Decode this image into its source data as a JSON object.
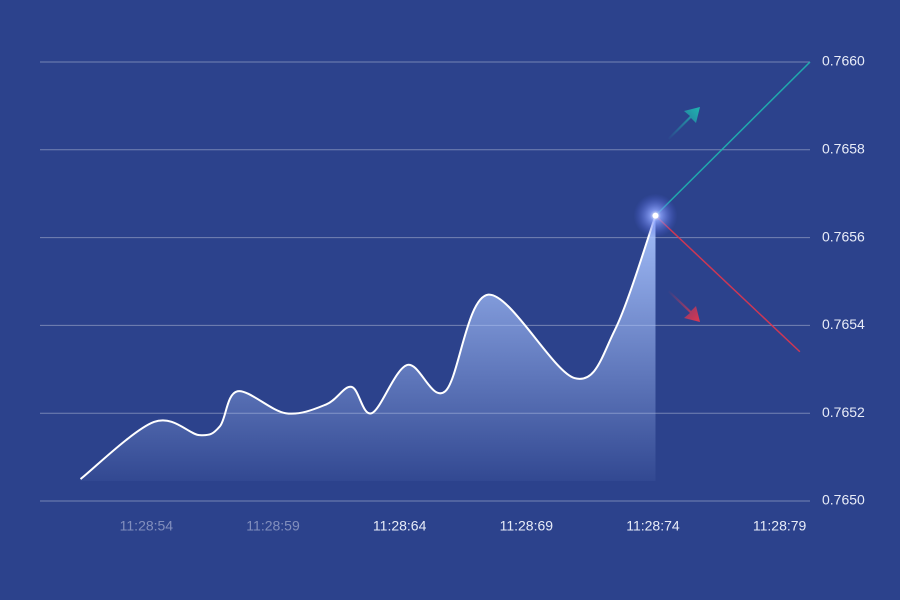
{
  "chart_data": {
    "type": "area",
    "x": [
      51.4,
      54.3,
      56.1,
      56.9,
      57.6,
      59.5,
      61.1,
      62.1,
      62.9,
      64.3,
      65.8,
      67.5,
      70.9,
      72.5,
      74.1
    ],
    "series": [
      {
        "color": "#ffffff",
        "values": [
          0.76505,
          0.76518,
          0.76515,
          0.76517,
          0.76525,
          0.7652,
          0.76522,
          0.76526,
          0.7652,
          0.76531,
          0.76525,
          0.76547,
          0.76528,
          0.76539,
          0.76565
        ]
      }
    ],
    "projections": [
      {
        "color": "#1fb5b0",
        "x": [
          74.1,
          80.2
        ],
        "values": [
          0.76565,
          0.766
        ]
      },
      {
        "color": "#e0364e",
        "x": [
          74.1,
          79.8
        ],
        "values": [
          0.76565,
          0.76534
        ]
      }
    ],
    "xlim": [
      49.8,
      80.2
    ],
    "xticks": [
      {
        "value": 54,
        "label": "11:28:54"
      },
      {
        "value": 59,
        "label": "11:28:59"
      },
      {
        "value": 64,
        "label": "11:28:64"
      },
      {
        "value": 69,
        "label": "11:28:69"
      },
      {
        "value": 74,
        "label": "11:28:74"
      },
      {
        "value": 79,
        "label": "11:28:79"
      }
    ],
    "ylim": [
      0.765,
      0.766
    ],
    "yticks": [
      {
        "value": 0.765,
        "label": "0.7650"
      },
      0.7652,
      0.7654,
      0.7656,
      0.7658,
      {
        "value": 0.766,
        "label": "0.7660"
      }
    ],
    "grid": true
  }
}
